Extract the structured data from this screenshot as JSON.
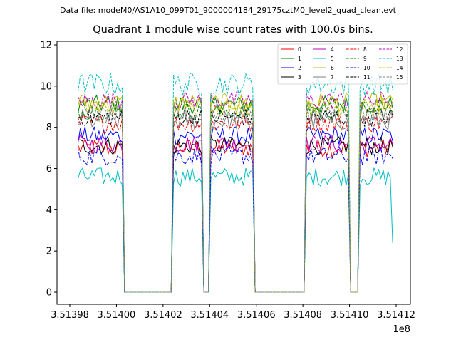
{
  "suptitle": "Data file: modeM0/AS1A10_099T01_9000004184_29175cztM0_level2_quad_clean.evt",
  "title": "Quadrant 1 module wise count rates with 100.0s bins.",
  "chart_data": {
    "type": "line",
    "xlim": [
      351398000,
      351412000
    ],
    "ylim": [
      0,
      12
    ],
    "ytick_values": [
      0,
      2,
      4,
      6,
      8,
      10,
      12
    ],
    "xtick_values": [
      351398000,
      351400000,
      351402000,
      351404000,
      351406000,
      351408000,
      351410000,
      351412000
    ],
    "xtick_labels": [
      "3.51398",
      "3.51400",
      "3.51402",
      "3.51404",
      "3.51406",
      "3.51408",
      "3.51410",
      "3.51412"
    ],
    "xaxis_offset_label": "1e8",
    "bin_seconds": 100,
    "legend": {
      "position": "top-right",
      "ncol": 4
    },
    "active_segments": [
      {
        "start": 351398350,
        "end": 351400250
      },
      {
        "start": 351402400,
        "end": 351403650
      },
      {
        "start": 351404050,
        "end": 351405850
      },
      {
        "start": 351408150,
        "end": 351409950
      },
      {
        "start": 351410400,
        "end": 351411900
      }
    ],
    "series": [
      {
        "name": "0",
        "color": "#ff0000",
        "style": "solid",
        "mean": 7.0
      },
      {
        "name": "1",
        "color": "#008000",
        "style": "solid",
        "mean": 9.1
      },
      {
        "name": "2",
        "color": "#0000ff",
        "style": "solid",
        "mean": 7.6
      },
      {
        "name": "3",
        "color": "#000000",
        "style": "solid",
        "mean": 7.1
      },
      {
        "name": "4",
        "color": "#bf00bf",
        "style": "solid",
        "mean": 7.2
      },
      {
        "name": "5",
        "color": "#00bfbf",
        "style": "solid",
        "mean": 5.6
      },
      {
        "name": "6",
        "color": "#bfbf00",
        "style": "solid",
        "mean": 9.2
      },
      {
        "name": "7",
        "color": "#808080",
        "style": "solid",
        "mean": 8.3
      },
      {
        "name": "8",
        "color": "#ff0000",
        "style": "dashed",
        "mean": 8.2
      },
      {
        "name": "9",
        "color": "#008000",
        "style": "dashed",
        "mean": 8.8
      },
      {
        "name": "10",
        "color": "#0000ff",
        "style": "dashed",
        "mean": 6.6
      },
      {
        "name": "11",
        "color": "#000000",
        "style": "dashed",
        "mean": 8.5
      },
      {
        "name": "12",
        "color": "#bf00bf",
        "style": "dashed",
        "mean": 9.3
      },
      {
        "name": "13",
        "color": "#00bfbf",
        "style": "dashed",
        "mean": 10.1
      },
      {
        "name": "14",
        "color": "#bfbf00",
        "style": "dashed",
        "mean": 9.0
      },
      {
        "name": "15",
        "color": "#808080",
        "style": "dashed",
        "mean": 8.6
      }
    ]
  }
}
